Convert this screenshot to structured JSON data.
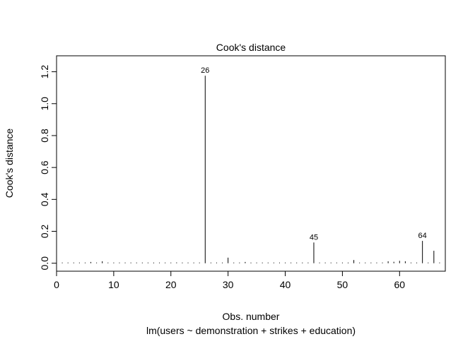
{
  "chart_data": {
    "type": "bar",
    "title": "Cook's distance",
    "xlabel": "Obs. number",
    "subtitle": "lm(users ~ demonstration + strikes + education)",
    "ylabel": "Cook's distance",
    "xlim": [
      0,
      68
    ],
    "ylim": [
      -0.05,
      1.3
    ],
    "x_ticks": [
      0,
      10,
      20,
      30,
      40,
      50,
      60
    ],
    "y_ticks": [
      0.0,
      0.2,
      0.4,
      0.6,
      0.8,
      1.0,
      1.2
    ],
    "y_tick_labels": [
      "0.0",
      "0.2",
      "0.4",
      "0.6",
      "0.8",
      "1.0",
      "1.2"
    ],
    "grid": false,
    "values": [
      0.004,
      0.003,
      0.004,
      0.003,
      0.002,
      0.008,
      0.003,
      0.012,
      0.002,
      0.001,
      0.003,
      0.002,
      0.001,
      0.002,
      0.001,
      0.002,
      0.001,
      0.003,
      0.002,
      0.001,
      0.005,
      0.002,
      0.001,
      0.003,
      0.004,
      1.175,
      0.002,
      0.003,
      0.001,
      0.035,
      0.002,
      0.003,
      0.008,
      0.003,
      0.002,
      0.004,
      0.003,
      0.002,
      0.003,
      0.002,
      0.001,
      0.002,
      0.003,
      0.004,
      0.13,
      0.004,
      0.002,
      0.003,
      0.002,
      0.004,
      0.003,
      0.02,
      0.003,
      0.002,
      0.004,
      0.003,
      0.002,
      0.012,
      0.009,
      0.015,
      0.012,
      0.003,
      0.002,
      0.14,
      0.002,
      0.078,
      0.002
    ],
    "labeled_points": [
      {
        "x": 26,
        "label": "26"
      },
      {
        "x": 45,
        "label": "45"
      },
      {
        "x": 64,
        "label": "64"
      }
    ]
  }
}
